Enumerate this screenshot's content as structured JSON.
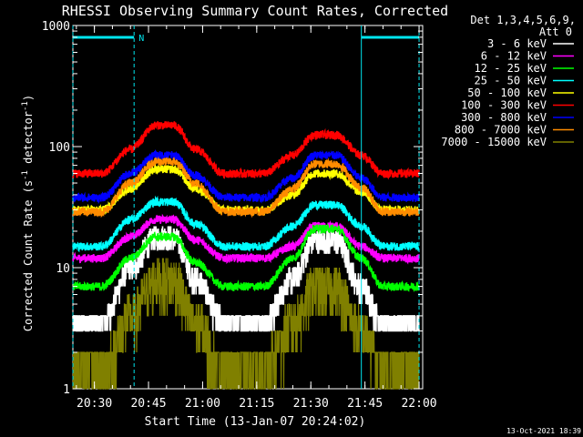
{
  "chart_data": {
    "type": "line",
    "title": "RHESSI Observing Summary Count Rates, Corrected",
    "xlabel": "Start Time (13-Jan-07 20:24:02)",
    "ylabel": "Corrected Count Rate (s⁻¹ detector⁻¹)",
    "ylabel_parts": {
      "main": "Corrected Count Rate (s",
      "exp1": "-1",
      "mid": " detector",
      "exp2": "-1",
      "end": ")"
    },
    "xlim": [
      "20:24:02",
      "22:01:00"
    ],
    "ylim": [
      1,
      1000
    ],
    "yscale": "log",
    "x_ticks": [
      "20:30",
      "20:45",
      "21:00",
      "21:15",
      "21:30",
      "21:45",
      "22:00"
    ],
    "y_ticks": [
      "1",
      "10",
      "100",
      "1000"
    ],
    "legend_header": [
      "Det 1,3,4,5,6,9,",
      "Att 0"
    ],
    "legend_placement": "right",
    "timestamp": "13-Oct-2021 18:39",
    "night_marker": {
      "label": "N",
      "color": "#00e5ee"
    },
    "vlines_dashed": [
      "20:24:02",
      "20:41:00",
      "22:00:00"
    ],
    "vline_solid": "21:44:00",
    "bar_segments": [
      [
        "20:24:02",
        "20:41:00"
      ],
      [
        "21:44:00",
        "22:00:00"
      ]
    ],
    "series": [
      {
        "name": "3 - 6 keV",
        "color": "#ffffff",
        "values": [
          3.5,
          3.5,
          10,
          18,
          18,
          8,
          3.5,
          3.5,
          8,
          17,
          17,
          7,
          3.5,
          3.5
        ]
      },
      {
        "name": "6 - 12 keV",
        "color": "#ff00ff",
        "values": [
          12,
          12,
          18,
          25,
          25,
          17,
          12,
          12,
          15,
          22,
          22,
          15,
          12,
          12
        ]
      },
      {
        "name": "12 - 25 keV",
        "color": "#00ff00",
        "values": [
          7,
          7,
          12,
          18,
          18,
          11,
          7,
          7,
          12,
          21,
          21,
          12,
          7,
          7
        ]
      },
      {
        "name": "25 - 50 keV",
        "color": "#00ffff",
        "values": [
          15,
          15,
          25,
          35,
          35,
          23,
          15,
          15,
          22,
          33,
          33,
          22,
          15,
          15
        ]
      },
      {
        "name": "50 - 100 keV",
        "color": "#ffff00",
        "values": [
          30,
          30,
          45,
          65,
          65,
          45,
          30,
          30,
          40,
          60,
          60,
          42,
          30,
          30
        ]
      },
      {
        "name": "100 - 300 keV",
        "color": "#ff0000",
        "values": [
          60,
          60,
          95,
          150,
          150,
          95,
          60,
          60,
          85,
          125,
          125,
          85,
          60,
          60
        ]
      },
      {
        "name": "300 - 800 keV",
        "color": "#0000ff",
        "values": [
          38,
          38,
          60,
          85,
          85,
          58,
          38,
          38,
          55,
          85,
          85,
          55,
          38,
          38
        ]
      },
      {
        "name": "800 - 7000 keV",
        "color": "#ff8c00",
        "values": [
          29,
          29,
          50,
          75,
          75,
          50,
          29,
          29,
          45,
          72,
          72,
          46,
          29,
          29
        ]
      },
      {
        "name": "7000 - 15000 keV",
        "color": "#808000",
        "values": [
          1.5,
          1.5,
          4,
          8,
          8,
          3.5,
          1.5,
          1.5,
          3.5,
          7,
          7,
          3,
          1.5,
          1.5
        ]
      }
    ],
    "x": [
      "20:24:02",
      "20:32:00",
      "20:40:00",
      "20:47:00",
      "20:52:00",
      "20:58:00",
      "21:06:00",
      "21:17:00",
      "21:25:00",
      "21:31:00",
      "21:37:00",
      "21:44:00",
      "21:50:00",
      "22:00:00"
    ]
  }
}
